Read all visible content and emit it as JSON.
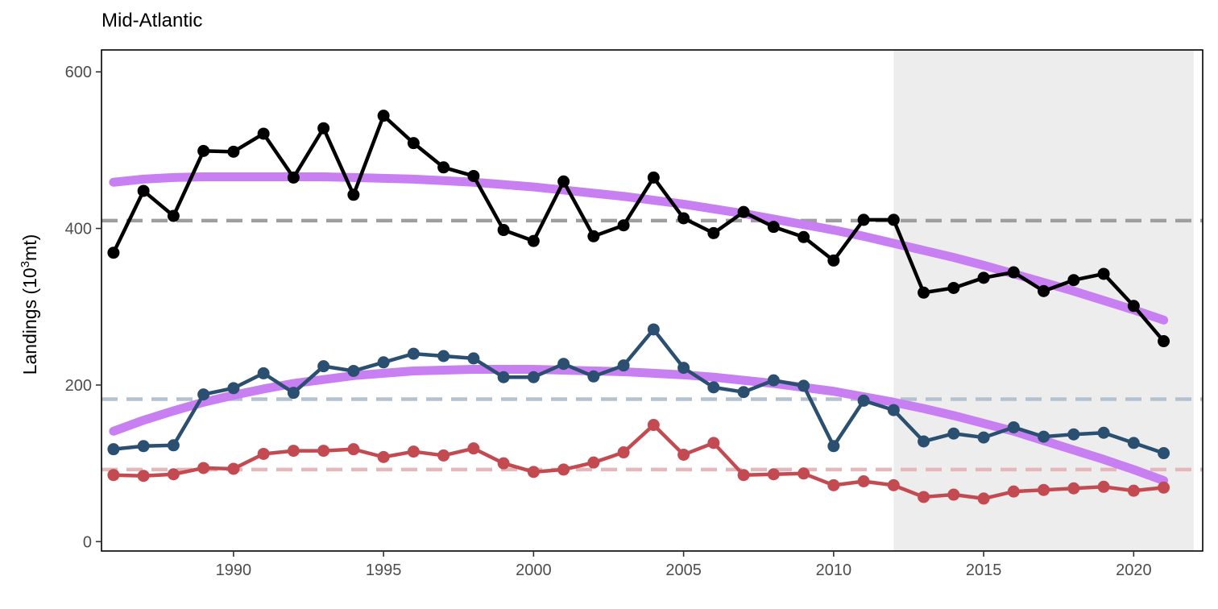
{
  "chart_data": {
    "type": "line",
    "title": "Mid-Atlantic",
    "ylabel": "Landings (10",
    "ylabel_sup": "3",
    "ylabel_suffix": "mt)",
    "xlim": [
      1985.6,
      2022.3
    ],
    "ylim": [
      -12,
      628
    ],
    "x_ticks": [
      1990,
      1995,
      2000,
      2005,
      2010,
      2015,
      2020
    ],
    "y_ticks": [
      0,
      200,
      400,
      600
    ],
    "grid": false,
    "shaded_region": {
      "x_start": 2012,
      "x_end": 2022,
      "color": "#ededed"
    },
    "x": [
      1986,
      1987,
      1988,
      1989,
      1990,
      1991,
      1992,
      1993,
      1994,
      1995,
      1996,
      1997,
      1998,
      1999,
      2000,
      2001,
      2002,
      2003,
      2004,
      2005,
      2006,
      2007,
      2008,
      2009,
      2010,
      2011,
      2012,
      2013,
      2014,
      2015,
      2016,
      2017,
      2018,
      2019,
      2020,
      2021
    ],
    "series": [
      {
        "color": "#000000",
        "values": [
          369,
          448,
          416,
          499,
          498,
          521,
          465,
          528,
          443,
          544,
          509,
          478,
          467,
          398,
          384,
          460,
          390,
          404,
          465,
          413,
          394,
          421,
          402,
          389,
          359,
          411,
          411,
          318,
          324,
          337,
          344,
          320,
          334,
          342,
          301,
          256
        ],
        "mean": 410,
        "mean_color": "#9e9e9e",
        "trend": [
          459,
          463,
          465,
          466,
          466,
          466,
          466,
          466,
          465,
          464,
          463,
          461,
          459,
          456,
          453,
          449,
          445,
          441,
          436,
          431,
          425,
          419,
          412,
          405,
          398,
          390,
          381,
          372,
          363,
          353,
          342,
          331,
          320,
          308,
          296,
          283
        ]
      },
      {
        "color": "#2a4f70",
        "values": [
          118,
          122,
          123,
          188,
          196,
          215,
          190,
          224,
          218,
          229,
          240,
          237,
          234,
          210,
          210,
          227,
          211,
          225,
          271,
          222,
          197,
          191,
          206,
          199,
          122,
          180,
          168,
          128,
          138,
          133,
          146,
          134,
          137,
          139,
          126,
          113
        ],
        "mean": 182,
        "mean_color": "#b4c2cf",
        "trend": [
          141,
          155,
          167,
          178,
          187,
          195,
          202,
          207,
          212,
          215,
          218,
          219,
          220,
          220,
          220,
          219,
          218,
          217,
          215,
          213,
          210,
          206,
          202,
          197,
          192,
          185,
          178,
          170,
          161,
          151,
          141,
          129,
          117,
          105,
          92,
          78
        ]
      },
      {
        "color": "#c44a51",
        "values": [
          85,
          84,
          86,
          94,
          93,
          112,
          116,
          116,
          118,
          108,
          115,
          110,
          119,
          100,
          89,
          92,
          101,
          114,
          149,
          111,
          126,
          85,
          86,
          87,
          72,
          77,
          72,
          57,
          60,
          55,
          64,
          66,
          68,
          70,
          65,
          69
        ],
        "mean": 92,
        "mean_color": "#e5b7ba"
      }
    ],
    "trend_color": "#c77ff2"
  }
}
